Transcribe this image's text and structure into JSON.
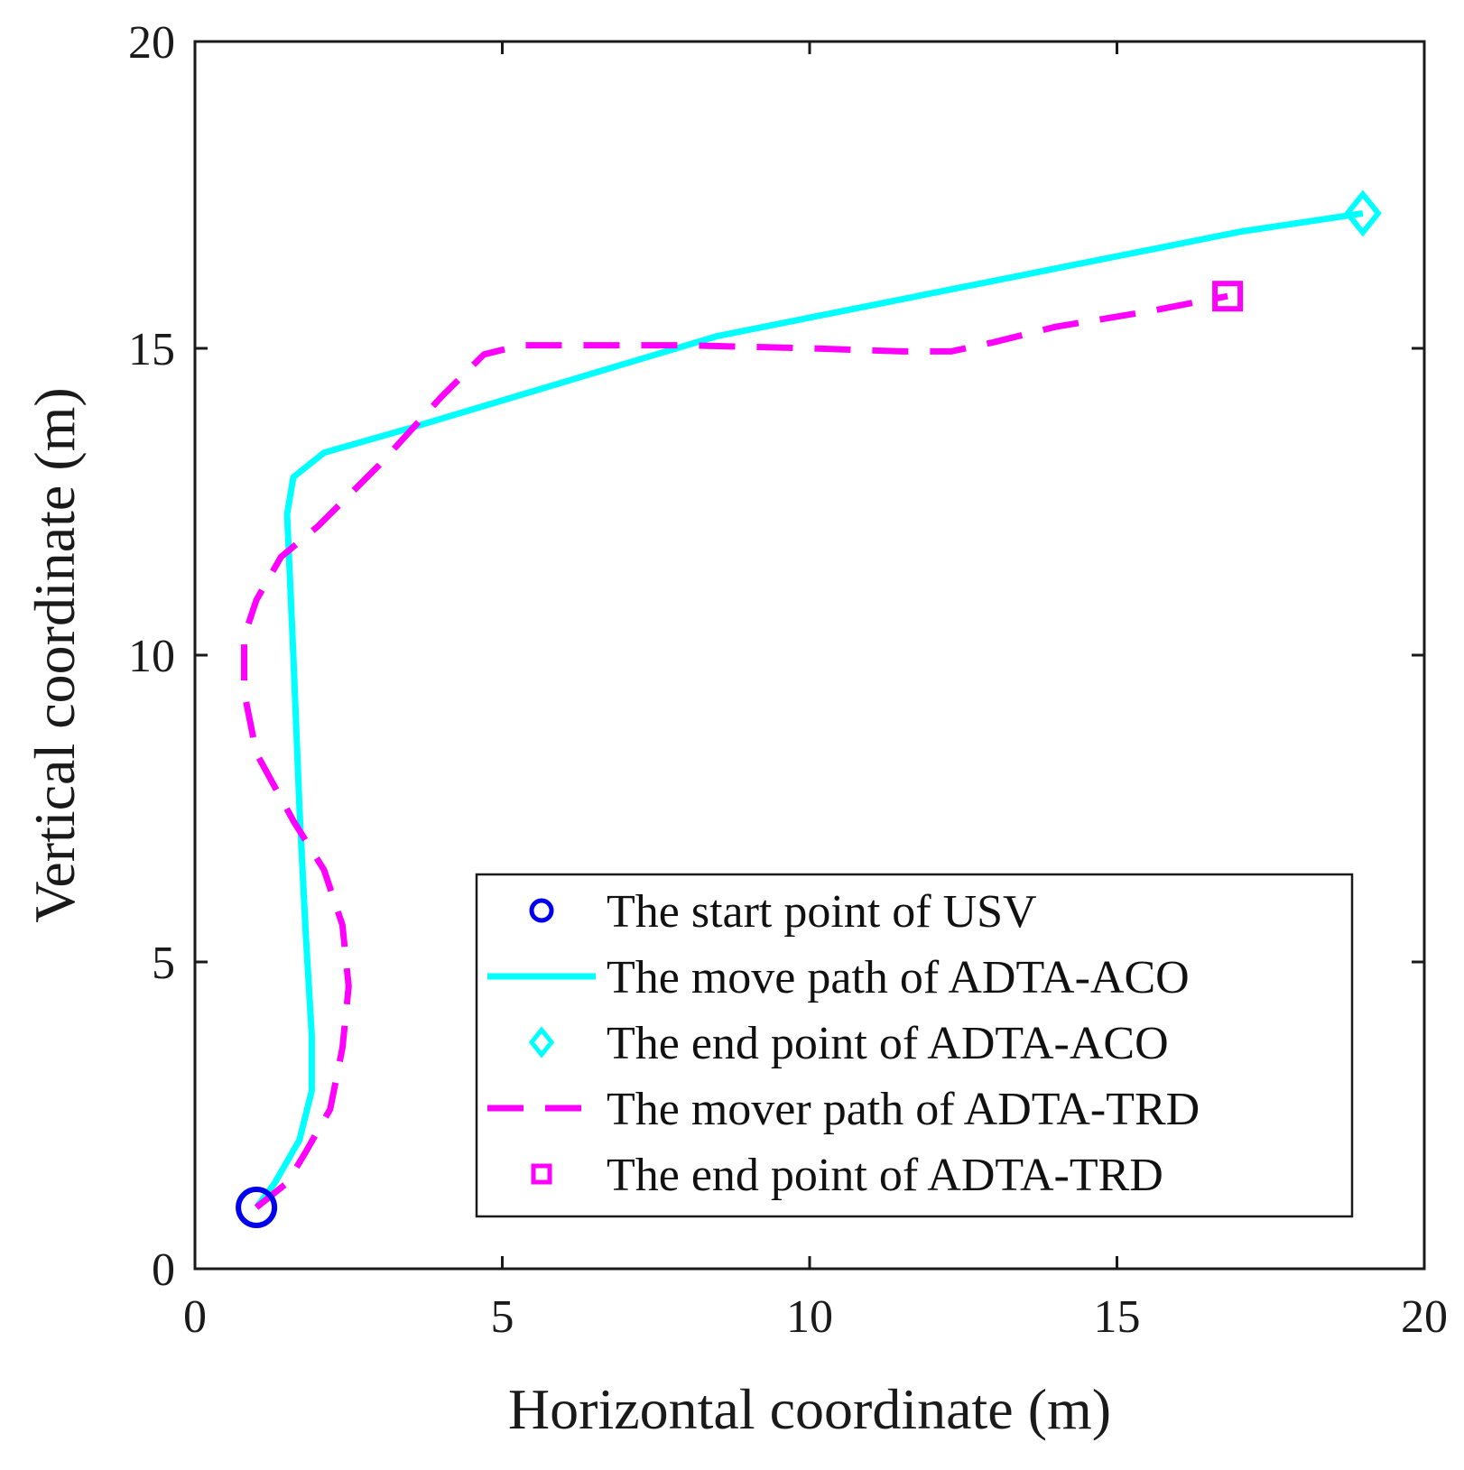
{
  "chart_data": {
    "type": "line",
    "title": "",
    "xlabel": "Horizontal coordinate (m)",
    "ylabel": "Vertical coordinate (m)",
    "xlim": [
      0,
      20
    ],
    "ylim": [
      0,
      20
    ],
    "xticks": [
      0,
      5,
      10,
      15,
      20
    ],
    "yticks": [
      0,
      5,
      10,
      15,
      20
    ],
    "grid": false,
    "legend_position": "bottom-right",
    "series": [
      {
        "name": "The start point of USV",
        "kind": "marker",
        "marker": "circle",
        "color": "#0000ee",
        "points": [
          [
            1,
            1
          ]
        ]
      },
      {
        "name": "The move path of ADTA-ACO",
        "kind": "line",
        "style": "solid",
        "color": "#00ffff",
        "points": [
          [
            1,
            1
          ],
          [
            1.3,
            1.4
          ],
          [
            1.7,
            2.1
          ],
          [
            1.9,
            2.9
          ],
          [
            1.9,
            3.8
          ],
          [
            1.8,
            5.5
          ],
          [
            1.7,
            7.5
          ],
          [
            1.6,
            10
          ],
          [
            1.5,
            12.3
          ],
          [
            1.6,
            12.9
          ],
          [
            2.1,
            13.3
          ],
          [
            3.5,
            13.7
          ],
          [
            5.5,
            14.3
          ],
          [
            7.5,
            14.9
          ],
          [
            8.5,
            15.2
          ],
          [
            11,
            15.7
          ],
          [
            14,
            16.3
          ],
          [
            17,
            16.9
          ],
          [
            19,
            17.2
          ]
        ]
      },
      {
        "name": "The end point of ADTA-ACO",
        "kind": "marker",
        "marker": "diamond",
        "color": "#00ffff",
        "points": [
          [
            19,
            17.2
          ]
        ]
      },
      {
        "name": "The mover path of ADTA-TRD",
        "kind": "line",
        "style": "dashed",
        "color": "#ff00ff",
        "points": [
          [
            1,
            1
          ],
          [
            1.5,
            1.4
          ],
          [
            1.8,
            1.9
          ],
          [
            2.2,
            2.6
          ],
          [
            2.4,
            3.6
          ],
          [
            2.5,
            4.6
          ],
          [
            2.4,
            5.6
          ],
          [
            2.1,
            6.5
          ],
          [
            1.6,
            7.3
          ],
          [
            1.0,
            8.4
          ],
          [
            0.8,
            9.4
          ],
          [
            0.8,
            10.3
          ],
          [
            1.0,
            10.9
          ],
          [
            1.4,
            11.6
          ],
          [
            2.0,
            12.1
          ],
          [
            3.0,
            13.1
          ],
          [
            4.0,
            14.2
          ],
          [
            4.7,
            14.9
          ],
          [
            5.3,
            15.05
          ],
          [
            8.0,
            15.05
          ],
          [
            10.0,
            15.0
          ],
          [
            11.5,
            14.95
          ],
          [
            12.3,
            14.95
          ],
          [
            13.0,
            15.1
          ],
          [
            14.0,
            15.35
          ],
          [
            15.5,
            15.6
          ],
          [
            16.8,
            15.85
          ]
        ]
      },
      {
        "name": "The end point of ADTA-TRD",
        "kind": "marker",
        "marker": "square",
        "color": "#ff00ff",
        "points": [
          [
            16.8,
            15.85
          ]
        ]
      }
    ]
  }
}
